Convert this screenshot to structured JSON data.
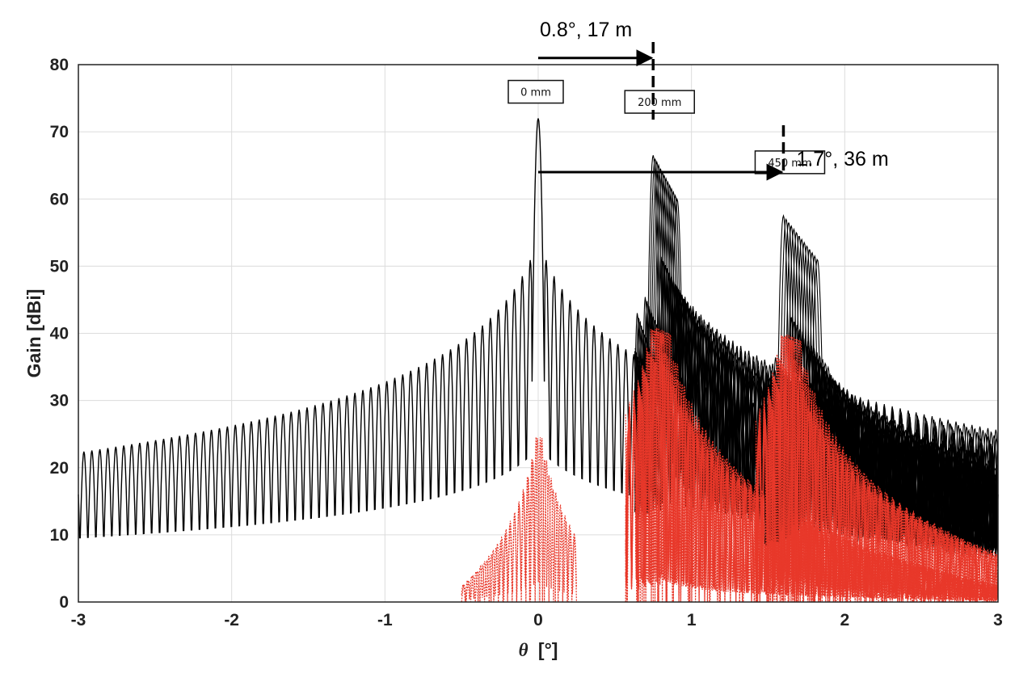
{
  "chart_data": {
    "type": "line",
    "xlabel_symbol": "θ",
    "xlabel_unit": "[°]",
    "ylabel": "Gain [dBi]",
    "xlim": [
      -3,
      3
    ],
    "ylim": [
      0,
      80
    ],
    "xticks": [
      -3,
      -2,
      -1,
      0,
      1,
      2,
      3
    ],
    "yticks": [
      0,
      10,
      20,
      30,
      40,
      50,
      60,
      70,
      80
    ],
    "grid": true,
    "series_colors": {
      "co_pol": "#000000",
      "cross_pol": "#e8382a"
    },
    "beams": [
      {
        "label": "0 mm",
        "peak_theta": 0.0,
        "peak_gain": 72,
        "crosspol_peak": 26.5
      },
      {
        "label": "200 mm",
        "peak_theta": 0.75,
        "peak_gain": 66.5,
        "crosspol_peak": 43
      },
      {
        "label": "450 mm",
        "peak_theta": 1.6,
        "peak_gain": 57.5,
        "crosspol_peak": 42
      }
    ],
    "annotations": [
      {
        "text": "0.8°, 17 m",
        "from_theta": 0.0,
        "to_theta": 0.75,
        "gain": 81
      },
      {
        "text": "1.7°, 36 m",
        "from_theta": 0.0,
        "to_theta": 1.6,
        "gain": 64
      }
    ]
  }
}
